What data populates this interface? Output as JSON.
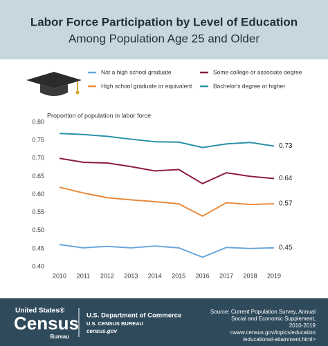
{
  "chart_data": {
    "type": "line",
    "title": "Labor Force Participation by Level of Education",
    "subtitle": "Among Population Age 25 and Older",
    "y_label": "Proportion of population in labor force",
    "categories": [
      "2010",
      "2011",
      "2012",
      "2013",
      "2014",
      "2015",
      "2016",
      "2017",
      "2018",
      "2019"
    ],
    "series": [
      {
        "name": "Not a high school graduate",
        "color": "#6ba7dc",
        "values": [
          0.461,
          0.452,
          0.456,
          0.452,
          0.457,
          0.452,
          0.426,
          0.453,
          0.45,
          0.452
        ],
        "value_labels": [
          null,
          null,
          null,
          null,
          null,
          null,
          null,
          null,
          null,
          "0.45"
        ]
      },
      {
        "name": "High school graduate or equivalent",
        "color": "#e98a3c",
        "values": [
          0.62,
          0.604,
          0.591,
          0.585,
          0.58,
          0.574,
          0.54,
          0.577,
          0.572,
          0.574
        ],
        "value_labels": [
          null,
          null,
          null,
          null,
          null,
          null,
          null,
          null,
          null,
          "0.57"
        ]
      },
      {
        "name": "Some college or associate degree",
        "color": "#8c1d40",
        "values": [
          0.7,
          0.689,
          0.687,
          0.677,
          0.665,
          0.669,
          0.63,
          0.66,
          0.65,
          0.644
        ],
        "value_labels": [
          null,
          null,
          null,
          null,
          null,
          null,
          null,
          null,
          null,
          "0.64"
        ]
      },
      {
        "name": "Bachelor's degree or higher",
        "color": "#2a91a8",
        "values": [
          0.769,
          0.766,
          0.761,
          0.753,
          0.746,
          0.745,
          0.73,
          0.74,
          0.744,
          0.734
        ],
        "value_labels": [
          null,
          null,
          null,
          null,
          null,
          null,
          null,
          null,
          null,
          "0.73"
        ]
      }
    ],
    "ylim": [
      0.4,
      0.8
    ],
    "yticks": [
      {
        "value": 0.4,
        "label": "0.40"
      },
      0.45,
      {
        "value": 0.5,
        "label": "0.50"
      },
      0.55,
      {
        "value": 0.6,
        "label": "0.60"
      },
      0.65,
      {
        "value": 0.7,
        "label": "0.70"
      },
      0.75,
      {
        "value": 0.8,
        "label": "0.80"
      }
    ],
    "grid": false
  },
  "footer": {
    "logo_top": "United States®",
    "logo_main": "Census",
    "logo_bottom": "Bureau",
    "department": "U.S. Department of Commerce",
    "bureau": "U.S. CENSUS BUREAU",
    "website": "census.gov",
    "source": [
      "Source: Current Population Survey, Annual",
      "Social and Economic Supplement,",
      "2010-2019",
      "<www.census.gov/topics/education",
      "/educational-attainment.html>"
    ]
  }
}
